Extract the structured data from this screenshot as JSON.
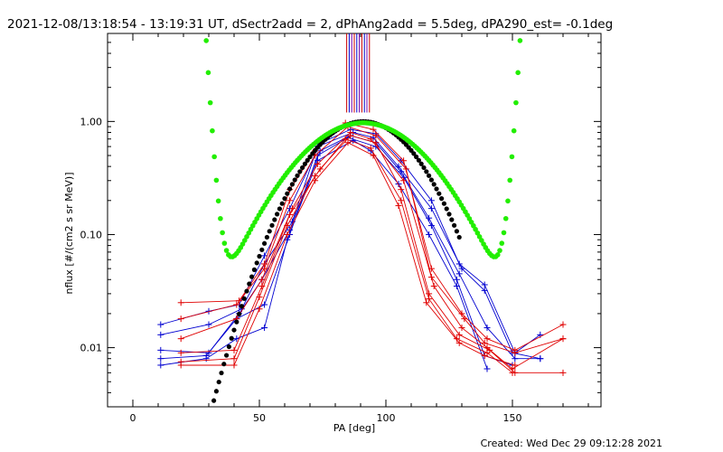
{
  "header": {
    "title": "2021-12-08/13:18:54 - 13:19:31 UT, dSectr2add = 2, dPhAng2add = 5.5deg, dPA290_est= -0.1deg"
  },
  "footer": {
    "created": "Created: Wed Dec 29 09:12:28 2021"
  },
  "chart_data": {
    "type": "scatter",
    "xlabel": "PA [deg]",
    "ylabel": "nflux [#/(cm2 s sr MeV)]",
    "xlim": [
      -10,
      185
    ],
    "ylim": [
      0.003,
      6.0
    ],
    "yscale": "log",
    "x_ticks": [
      0,
      50,
      100,
      150
    ],
    "x_tick_labels": [
      "0",
      "50",
      "100",
      "150"
    ],
    "y_ticks": [
      0.01,
      0.1,
      1.0
    ],
    "y_tick_labels": [
      "0.01",
      "0.10",
      "1.00"
    ],
    "grid": false,
    "colors": {
      "red": "#e00000",
      "blue": "#0000d0",
      "green": "#22ee00",
      "black": "#000000",
      "marker_lines": [
        "#cc0000",
        "#0000cc",
        "#7700aa"
      ]
    },
    "vertical_markers_x": [
      84.5,
      85.5,
      86.5,
      87.5,
      88.5,
      89.5,
      90.5,
      91.5,
      92.5,
      93.5
    ],
    "vertical_markers_y_range": [
      1.2,
      6.0
    ],
    "red_series": [
      {
        "x": [
          19,
          42,
          52,
          62,
          72,
          84,
          95,
          107,
          118,
          130,
          140,
          151,
          170
        ],
        "y": [
          0.025,
          0.026,
          0.055,
          0.25,
          0.55,
          0.97,
          0.85,
          0.45,
          0.05,
          0.02,
          0.012,
          0.0095,
          0.016
        ]
      },
      {
        "x": [
          19,
          41,
          52,
          62,
          72,
          85,
          96,
          108,
          118,
          131,
          139,
          151,
          170
        ],
        "y": [
          0.018,
          0.024,
          0.05,
          0.2,
          0.5,
          0.9,
          0.75,
          0.38,
          0.042,
          0.018,
          0.011,
          0.009,
          0.012
        ]
      },
      {
        "x": [
          19,
          41,
          51,
          63,
          73,
          86,
          94,
          107,
          119,
          130,
          140,
          150,
          170
        ],
        "y": [
          0.012,
          0.018,
          0.04,
          0.17,
          0.42,
          0.8,
          0.7,
          0.3,
          0.035,
          0.015,
          0.01,
          0.0065,
          0.012
        ]
      },
      {
        "x": [
          19,
          40,
          51,
          62,
          74,
          86,
          96,
          106,
          117,
          129,
          141,
          151,
          170
        ],
        "y": [
          0.009,
          0.0095,
          0.035,
          0.15,
          0.38,
          0.75,
          0.65,
          0.25,
          0.03,
          0.013,
          0.0095,
          0.006,
          0.006
        ]
      },
      {
        "x": [
          19,
          40,
          50,
          61,
          72,
          84,
          94,
          106,
          117,
          128,
          140,
          150
        ],
        "y": [
          0.0075,
          0.008,
          0.028,
          0.12,
          0.33,
          0.7,
          0.58,
          0.2,
          0.027,
          0.012,
          0.009,
          0.006
        ]
      },
      {
        "x": [
          19,
          40,
          50,
          61,
          72,
          85,
          95,
          105,
          116,
          129,
          139,
          151
        ],
        "y": [
          0.007,
          0.007,
          0.022,
          0.1,
          0.3,
          0.65,
          0.5,
          0.18,
          0.025,
          0.011,
          0.0085,
          0.007
        ]
      }
    ],
    "blue_series": [
      {
        "x": [
          11,
          30,
          42,
          52,
          62,
          74,
          86,
          96,
          106,
          118,
          129,
          139,
          151,
          161
        ],
        "y": [
          0.016,
          0.021,
          0.024,
          0.065,
          0.17,
          0.64,
          0.85,
          0.78,
          0.45,
          0.2,
          0.055,
          0.036,
          0.009,
          0.013
        ]
      },
      {
        "x": [
          11,
          30,
          43,
          52,
          63,
          73,
          87,
          95,
          105,
          118,
          130,
          139,
          150,
          161
        ],
        "y": [
          0.013,
          0.016,
          0.022,
          0.055,
          0.13,
          0.6,
          0.8,
          0.72,
          0.4,
          0.17,
          0.05,
          0.032,
          0.009,
          0.008
        ]
      },
      {
        "x": [
          11,
          30,
          42,
          51,
          62,
          74,
          86,
          96,
          106,
          117,
          129,
          140,
          151,
          161
        ],
        "y": [
          0.0095,
          0.009,
          0.02,
          0.04,
          0.11,
          0.55,
          0.75,
          0.65,
          0.36,
          0.14,
          0.045,
          0.015,
          0.008,
          0.008
        ]
      },
      {
        "x": [
          11,
          29,
          41,
          52,
          62,
          73,
          85,
          96,
          107,
          118,
          128,
          139,
          150
        ],
        "y": [
          0.008,
          0.0085,
          0.018,
          0.024,
          0.1,
          0.5,
          0.72,
          0.6,
          0.32,
          0.12,
          0.04,
          0.0085,
          0.007
        ]
      },
      {
        "x": [
          11,
          29,
          41,
          52,
          61,
          73,
          87,
          94,
          105,
          117,
          128,
          140
        ],
        "y": [
          0.007,
          0.008,
          0.012,
          0.015,
          0.09,
          0.45,
          0.68,
          0.55,
          0.28,
          0.1,
          0.035,
          0.0065
        ]
      }
    ],
    "green_fit": {
      "center": 91,
      "amplitude": 0.95,
      "width": 21,
      "background_min": 0.0095,
      "x_range": [
        21,
        160
      ]
    },
    "black_fit": {
      "center": 91,
      "sigma": 17.5,
      "x_range": [
        20,
        129
      ]
    }
  }
}
